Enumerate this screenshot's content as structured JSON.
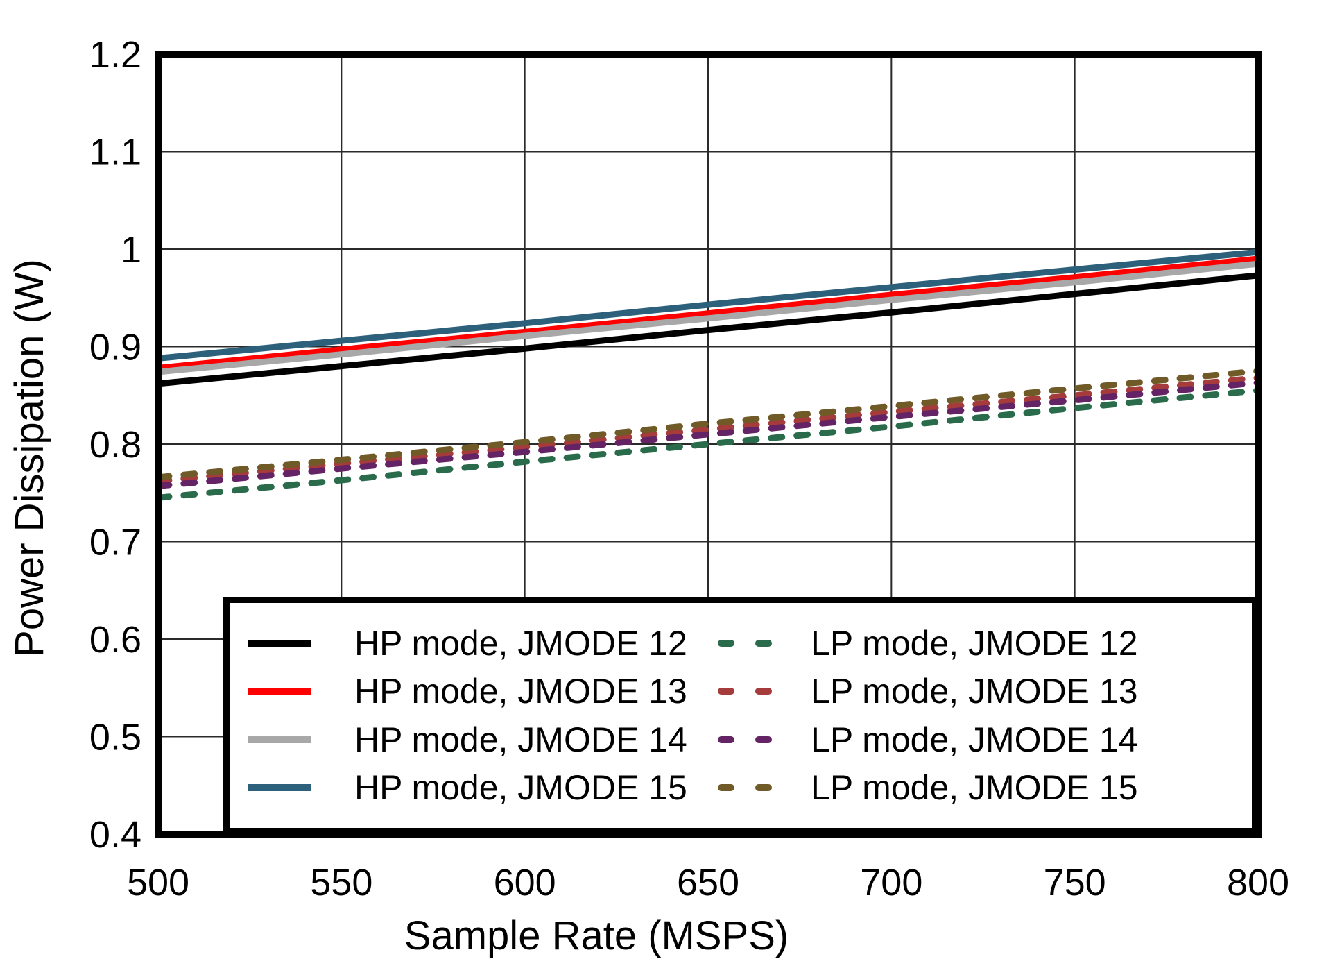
{
  "figure": {
    "x_axis_label": "Sample Rate (MSPS)",
    "y_axis_label": "Power Dissipation (W)"
  },
  "chart_data": {
    "type": "line",
    "title": "",
    "xlabel": "Sample Rate (MSPS)",
    "ylabel": "Power Dissipation (W)",
    "xlim": [
      500,
      800
    ],
    "ylim": [
      0.4,
      1.2
    ],
    "grid": true,
    "legend_position": "inside lower, spanning plot width, 2 columns",
    "x": [
      500,
      550,
      600,
      650,
      700,
      750,
      800
    ],
    "x_tick_labels": [
      "500",
      "550",
      "600",
      "650",
      "700",
      "750",
      "800"
    ],
    "y_ticks": [
      0.4,
      0.5,
      0.6,
      0.7,
      0.8,
      0.9,
      1.0,
      1.1,
      1.2
    ],
    "y_tick_labels": [
      "0.4",
      "0.5",
      "0.6",
      "0.7",
      "0.8",
      "0.9",
      "1",
      "1.1",
      "1.2"
    ],
    "axis_color": "#000000",
    "grid_color": "#2a2a2a",
    "series": [
      {
        "name": "HP mode, JMODE 12",
        "style": "solid",
        "color": "#000000",
        "values": [
          0.862,
          0.88,
          0.898,
          0.917,
          0.935,
          0.954,
          0.973
        ]
      },
      {
        "name": "HP mode, JMODE 13",
        "style": "solid",
        "color": "#ff0000",
        "values": [
          0.878,
          0.897,
          0.915,
          0.934,
          0.953,
          0.971,
          0.99
        ]
      },
      {
        "name": "HP mode, JMODE 14",
        "style": "solid",
        "color": "#a8a8a8",
        "values": [
          0.874,
          0.892,
          0.911,
          0.929,
          0.948,
          0.966,
          0.985
        ]
      },
      {
        "name": "HP mode, JMODE 15",
        "style": "solid",
        "color": "#2d607a",
        "values": [
          0.888,
          0.906,
          0.924,
          0.943,
          0.961,
          0.979,
          0.997
        ]
      },
      {
        "name": "LP mode, JMODE 12",
        "style": "dashed",
        "color": "#2a6b4b",
        "values": [
          0.745,
          0.763,
          0.782,
          0.8,
          0.818,
          0.837,
          0.855
        ]
      },
      {
        "name": "LP mode, JMODE 13",
        "style": "dashed",
        "color": "#a53b3b",
        "values": [
          0.762,
          0.78,
          0.797,
          0.815,
          0.833,
          0.85,
          0.868
        ]
      },
      {
        "name": "LP mode, JMODE 14",
        "style": "dashed",
        "color": "#642365",
        "values": [
          0.757,
          0.775,
          0.792,
          0.81,
          0.828,
          0.845,
          0.863
        ]
      },
      {
        "name": "LP mode, JMODE 15",
        "style": "dashed",
        "color": "#6f5a28",
        "values": [
          0.766,
          0.784,
          0.802,
          0.821,
          0.839,
          0.857,
          0.875
        ]
      }
    ]
  }
}
